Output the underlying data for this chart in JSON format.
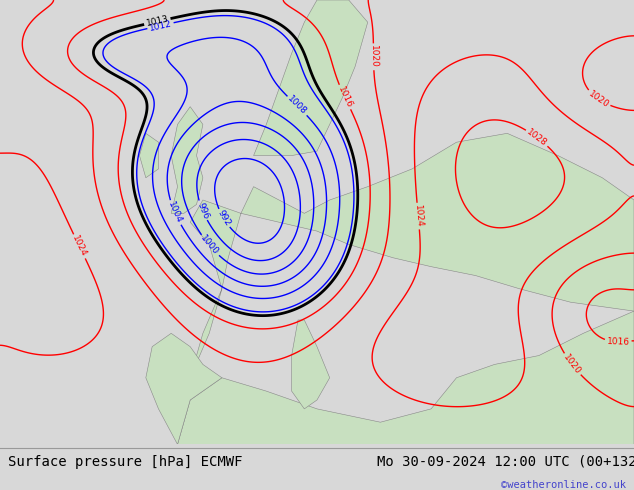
{
  "title_left": "Surface pressure [hPa] ECMWF",
  "title_right": "Mo 30-09-2024 12:00 UTC (00+132)",
  "watermark": "©weatheronline.co.uk",
  "ocean_color": "#c8d8f0",
  "land_color": "#c8e0c0",
  "bottom_bar_color": "#d8d8d8",
  "title_fontsize": 10,
  "watermark_color": "#4444cc",
  "figsize": [
    6.34,
    4.9
  ],
  "dpi": 100
}
